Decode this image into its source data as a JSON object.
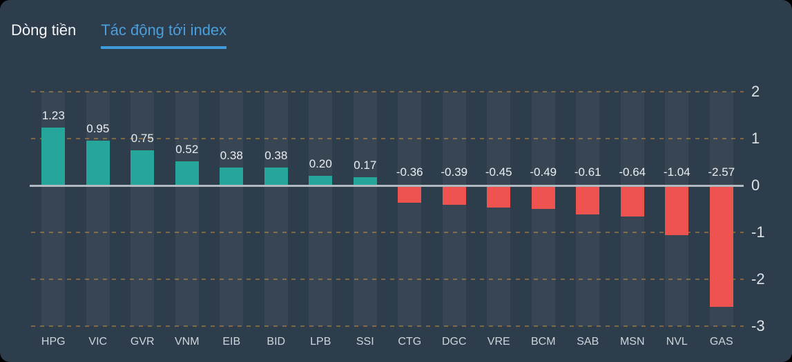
{
  "tabs": {
    "items": [
      {
        "label": "Dòng tiền",
        "active": false
      },
      {
        "label": "Tác động tới index",
        "active": true
      }
    ],
    "active_color": "#49a0dd",
    "inactive_color": "#f2f4f6"
  },
  "chart_data": {
    "type": "bar",
    "title": "Tác động tới index",
    "categories": [
      "HPG",
      "VIC",
      "GVR",
      "VNM",
      "EIB",
      "BID",
      "LPB",
      "SSI",
      "CTG",
      "DGC",
      "VRE",
      "BCM",
      "SAB",
      "MSN",
      "NVL",
      "GAS"
    ],
    "values": [
      1.23,
      0.95,
      0.75,
      0.52,
      0.38,
      0.38,
      0.2,
      0.17,
      -0.36,
      -0.39,
      -0.45,
      -0.49,
      -0.61,
      -0.64,
      -1.04,
      -2.57
    ],
    "value_labels": [
      "1.23",
      "0.95",
      "0.75",
      "0.52",
      "0.38",
      "0.38",
      "0.20",
      "0.17",
      "-0.36",
      "-0.39",
      "-0.45",
      "-0.49",
      "-0.61",
      "-0.64",
      "-1.04",
      "-2.57"
    ],
    "y_ticks": [
      "2",
      "1",
      "0",
      "-1",
      "-2",
      "-3"
    ],
    "ylim": [
      -3,
      2
    ],
    "xlabel": "",
    "ylabel": "",
    "grid": "horizontal-dashed",
    "legend_position": "none",
    "positive_color": "#26a69a",
    "negative_color": "#ef5350"
  },
  "colors": {
    "background": "#2e3d4b",
    "column_band": "rgba(255,255,255,0.05)",
    "zero_line": "#b2bac1",
    "gridline_dash": "rgba(205,145,60,0.5)",
    "value_label": "#e9edf1",
    "axis_label": "#dde2e7",
    "category_label": "#cdd5db"
  }
}
